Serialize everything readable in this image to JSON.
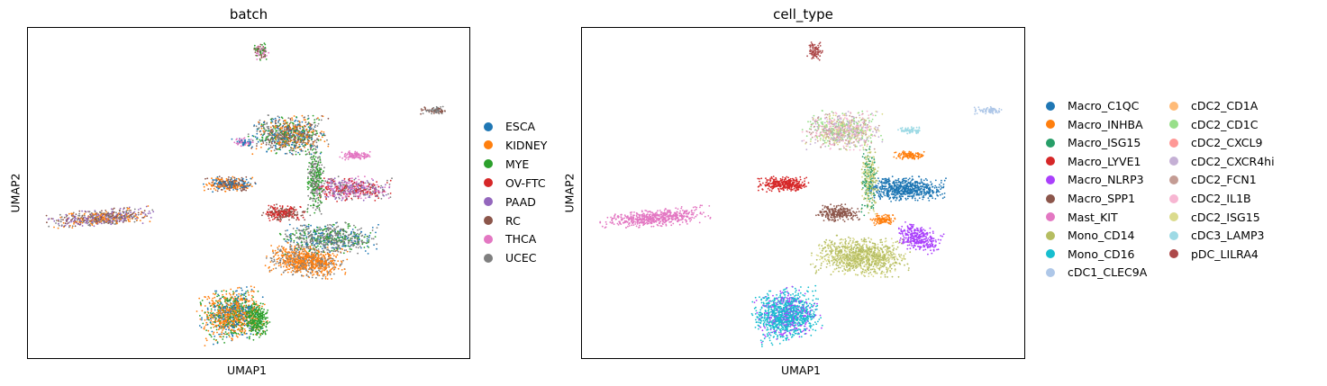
{
  "chart_data": [
    {
      "type": "scatter",
      "title": "batch",
      "xlabel": "UMAP1",
      "ylabel": "UMAP2",
      "xlim": [
        -10,
        14
      ],
      "ylim": [
        -10,
        10
      ],
      "grid": false,
      "legend_position": "right",
      "legend": [
        {
          "label": "ESCA",
          "color": "#1f77b4"
        },
        {
          "label": "KIDNEY",
          "color": "#ff7f0e"
        },
        {
          "label": "MYE",
          "color": "#2ca02c"
        },
        {
          "label": "OV-FTC",
          "color": "#d62728"
        },
        {
          "label": "PAAD",
          "color": "#9467bd"
        },
        {
          "label": "RC",
          "color": "#8c564b"
        },
        {
          "label": "THCA",
          "color": "#e377c2"
        },
        {
          "label": "UCEC",
          "color": "#7f7f7f"
        }
      ]
    },
    {
      "type": "scatter",
      "title": "cell_type",
      "xlabel": "UMAP1",
      "ylabel": "UMAP2",
      "xlim": [
        -10,
        14
      ],
      "ylim": [
        -10,
        10
      ],
      "grid": false,
      "legend_position": "right",
      "legend": [
        {
          "label": "Macro_C1QC",
          "color": "#1f77b4"
        },
        {
          "label": "Macro_INHBA",
          "color": "#ff7f0e"
        },
        {
          "label": "Macro_ISG15",
          "color": "#279e68"
        },
        {
          "label": "Macro_LYVE1",
          "color": "#d62728"
        },
        {
          "label": "Macro_NLRP3",
          "color": "#aa40fc"
        },
        {
          "label": "Macro_SPP1",
          "color": "#8c564b"
        },
        {
          "label": "Mast_KIT",
          "color": "#e377c2"
        },
        {
          "label": "Mono_CD14",
          "color": "#b5bd61"
        },
        {
          "label": "Mono_CD16",
          "color": "#17becf"
        },
        {
          "label": "cDC1_CLEC9A",
          "color": "#aec7e8"
        },
        {
          "label": "cDC2_CD1A",
          "color": "#ffbb78"
        },
        {
          "label": "cDC2_CD1C",
          "color": "#98df8a"
        },
        {
          "label": "cDC2_CXCL9",
          "color": "#ff9896"
        },
        {
          "label": "cDC2_CXCR4hi",
          "color": "#c5b0d5"
        },
        {
          "label": "cDC2_FCN1",
          "color": "#c49c94"
        },
        {
          "label": "cDC2_IL1B",
          "color": "#f7b6d2"
        },
        {
          "label": "cDC2_ISG15",
          "color": "#dbdb8d"
        },
        {
          "label": "cDC3_LAMP3",
          "color": "#9edae5"
        },
        {
          "label": "pDC_LILRA4",
          "color": "#ad494a"
        }
      ]
    }
  ]
}
